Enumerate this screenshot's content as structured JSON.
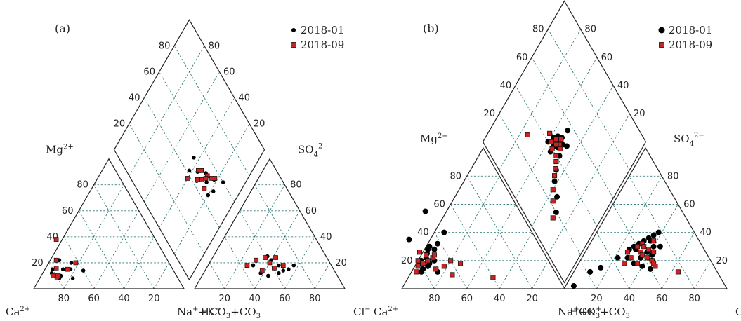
{
  "chart_data": [
    {
      "type": "scatter",
      "diagram": "piper",
      "panel_label": "(a)",
      "legend": {
        "placement": "top-right",
        "entries": [
          {
            "name": "2018-01",
            "marker": "circle",
            "color": "#000000"
          },
          {
            "name": "2018-09",
            "marker": "square",
            "color": "#cc2222"
          }
        ]
      },
      "ticks": [
        "20",
        "40",
        "60",
        "80"
      ],
      "axis_labels": {
        "cation_left": {
          "base": "Ca",
          "sup": "2+"
        },
        "cation_right": {
          "base": "Na",
          "sup": "+",
          "mid": "+K",
          "sup2": "+"
        },
        "cation_top": {
          "base": "Mg",
          "sup": "2+"
        },
        "anion_left": {
          "text": "HCO",
          "sub": "3",
          "rest": "+CO",
          "sub2": "3"
        },
        "anion_right": {
          "base": "Cl",
          "sup": "−"
        },
        "anion_top": {
          "base": "SO",
          "sub": "4",
          "sup": "2−"
        }
      },
      "series": [
        {
          "name": "2018-01",
          "cation": [
            [
              82,
              12
            ],
            [
              80,
              15
            ],
            [
              79,
              8
            ],
            [
              73,
              15
            ],
            [
              72,
              22
            ],
            [
              65,
              20
            ],
            [
              60,
              14
            ],
            [
              70,
              8
            ],
            [
              78,
              9
            ],
            [
              77,
              10
            ],
            [
              68,
              15
            ]
          ],
          "anion": [
            [
              30,
              18
            ],
            [
              38,
              12
            ],
            [
              44,
              10
            ],
            [
              50,
              12
            ],
            [
              55,
              15
            ],
            [
              57,
              18
            ],
            [
              52,
              14
            ],
            [
              47,
              18
            ],
            [
              40,
              22
            ],
            [
              36,
              25
            ]
          ],
          "diamond": [
            [
              33,
              43
            ],
            [
              20,
              45
            ],
            [
              26,
              49
            ],
            [
              30,
              52
            ],
            [
              36,
              47
            ],
            [
              42,
              42
            ],
            [
              15,
              60
            ],
            [
              18,
              50
            ],
            [
              44,
              50
            ],
            [
              22,
              55
            ]
          ]
        },
        {
          "name": "2018-09",
          "cation": [
            [
              82,
              10
            ],
            [
              80,
              9
            ],
            [
              77,
              16
            ],
            [
              74,
              22
            ],
            [
              66,
              38
            ],
            [
              62,
              20
            ],
            [
              79,
              10
            ],
            [
              70,
              15
            ]
          ],
          "anion": [
            [
              26,
              18
            ],
            [
              30,
              22
            ],
            [
              35,
              24
            ],
            [
              40,
              20
            ],
            [
              45,
              16
            ],
            [
              50,
              18
            ],
            [
              38,
              14
            ],
            [
              42,
              24
            ]
          ],
          "diamond": [
            [
              22,
              56
            ],
            [
              28,
              52
            ],
            [
              30,
              47
            ],
            [
              33,
              44
            ],
            [
              36,
              48
            ],
            [
              25,
              45
            ],
            [
              40,
              38
            ],
            [
              28,
              50
            ],
            [
              24,
              54
            ],
            [
              34,
              50
            ]
          ]
        }
      ]
    },
    {
      "type": "scatter",
      "diagram": "piper",
      "panel_label": "(b)",
      "legend": {
        "placement": "top-right",
        "entries": [
          {
            "name": "2018-01",
            "marker": "circle",
            "color": "#000000"
          },
          {
            "name": "2018-09",
            "marker": "square",
            "color": "#cc2222"
          }
        ]
      },
      "ticks": [
        "20",
        "40",
        "60",
        "80"
      ],
      "axis_labels": {
        "cation_left": {
          "base": "Ca",
          "sup": "2+"
        },
        "cation_right": {
          "base": "Na",
          "sup": "+",
          "mid": "+K",
          "sup2": "+"
        },
        "cation_top": {
          "base": "Mg",
          "sup": "2+"
        },
        "anion_left": {
          "text": "HCO",
          "sub": "3",
          "rest": "+CO",
          "sub2": "3"
        },
        "anion_right": {
          "base": "Cl",
          "sup": "−"
        },
        "anion_top": {
          "base": "SO",
          "sub": "4",
          "sup": "2−"
        }
      },
      "series": [
        {
          "name": "2018-01",
          "cation": [
            [
              82,
              12
            ],
            [
              80,
              18
            ],
            [
              78,
              20
            ],
            [
              76,
              16
            ],
            [
              74,
              22
            ],
            [
              72,
              25
            ],
            [
              70,
              28
            ],
            [
              68,
              30
            ],
            [
              66,
              28
            ],
            [
              78,
              35
            ],
            [
              62,
              32
            ],
            [
              58,
              55
            ],
            [
              54,
              40
            ],
            [
              74,
              18
            ],
            [
              72,
              12
            ],
            [
              80,
              14
            ],
            [
              70,
              20
            ]
          ],
          "anion": [
            [
              5,
              2
            ],
            [
              10,
              12
            ],
            [
              15,
              15
            ],
            [
              22,
              22
            ],
            [
              26,
              28
            ],
            [
              28,
              30
            ],
            [
              30,
              32
            ],
            [
              32,
              34
            ],
            [
              34,
              36
            ],
            [
              36,
              38
            ],
            [
              38,
              26
            ],
            [
              40,
              30
            ],
            [
              42,
              24
            ],
            [
              44,
              20
            ],
            [
              46,
              14
            ],
            [
              36,
              22
            ],
            [
              30,
              28
            ],
            [
              34,
              18
            ],
            [
              28,
              22
            ],
            [
              40,
              16
            ],
            [
              44,
              30
            ],
            [
              38,
              40
            ],
            [
              36,
              34
            ]
          ],
          "diamond": [
            [
              52,
              44
            ],
            [
              54,
              47
            ],
            [
              56,
              48
            ],
            [
              55,
              42
            ],
            [
              53,
              50
            ],
            [
              50,
              48
            ],
            [
              58,
              45
            ],
            [
              48,
              42
            ],
            [
              45,
              35
            ],
            [
              42,
              30
            ],
            [
              35,
              26
            ],
            [
              30,
              20
            ],
            [
              52,
              56
            ],
            [
              47,
              50
            ],
            [
              55,
              38
            ],
            [
              60,
              40
            ]
          ]
        },
        {
          "name": "2018-09",
          "cation": [
            [
              85,
              12
            ],
            [
              82,
              16
            ],
            [
              80,
              20
            ],
            [
              76,
              26
            ],
            [
              73,
              24
            ],
            [
              70,
              22
            ],
            [
              72,
              14
            ],
            [
              64,
              10
            ],
            [
              55,
              18
            ],
            [
              40,
              8
            ],
            [
              78,
              18
            ],
            [
              74,
              20
            ],
            [
              68,
              24
            ],
            [
              66,
              16
            ],
            [
              60,
              20
            ]
          ],
          "anion": [
            [
              26,
              26
            ],
            [
              30,
              30
            ],
            [
              32,
              32
            ],
            [
              34,
              26
            ],
            [
              36,
              24
            ],
            [
              38,
              28
            ],
            [
              40,
              22
            ],
            [
              42,
              26
            ],
            [
              44,
              20
            ],
            [
              46,
              18
            ],
            [
              48,
              16
            ],
            [
              64,
              12
            ],
            [
              30,
              22
            ],
            [
              34,
              30
            ],
            [
              36,
              18
            ],
            [
              28,
              18
            ],
            [
              38,
              34
            ]
          ],
          "diamond": [
            [
              50,
              45
            ],
            [
              52,
              46
            ],
            [
              54,
              44
            ],
            [
              56,
              46
            ],
            [
              50,
              40
            ],
            [
              48,
              38
            ],
            [
              46,
              35
            ],
            [
              44,
              32
            ],
            [
              40,
              26
            ],
            [
              36,
              22
            ],
            [
              58,
              42
            ],
            [
              62,
              44
            ],
            [
              30,
              16
            ],
            [
              53,
              49
            ],
            [
              55,
              40
            ],
            [
              75,
              30
            ]
          ]
        }
      ]
    }
  ]
}
